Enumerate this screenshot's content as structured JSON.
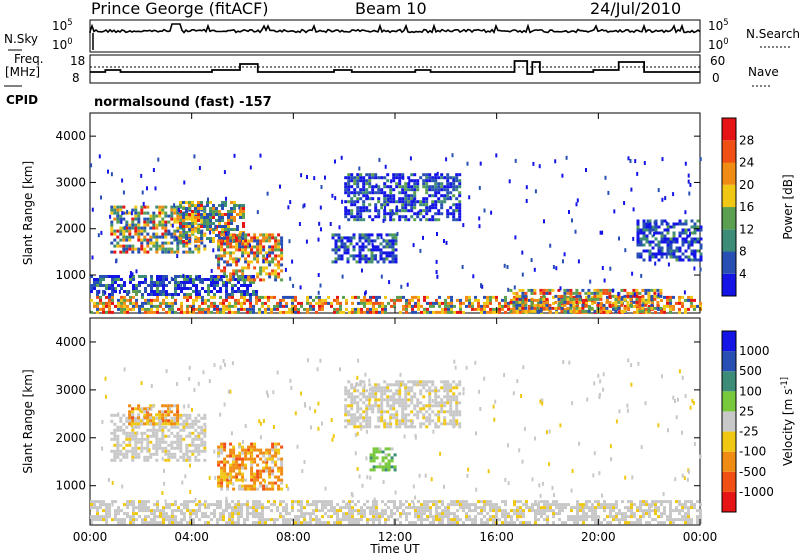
{
  "header": {
    "station": "Prince George (fitACF)",
    "beam": "Beam 10",
    "date": "24/Jul/2010"
  },
  "panels": {
    "nsky_label": "N.Sky",
    "nsky_ticks": [
      "10^5",
      "10^0"
    ],
    "nsearch_label": "N.Search",
    "nsearch_ticks": [
      "10^5",
      "10^0"
    ],
    "freq_label": "Freq.",
    "freq_unit": "[MHz]",
    "freq_ticks": [
      "18",
      "8"
    ],
    "nave_label": "Nave",
    "nave_ticks": [
      "60",
      "0"
    ],
    "cpid_label": "CPID",
    "cpid_value": "normalsound (fast) -157"
  },
  "colors": {
    "power_scale": [
      "#1414e6",
      "#2850b4",
      "#3c8c78",
      "#5aa050",
      "#f0c814",
      "#f08c14",
      "#f05014",
      "#e61414"
    ],
    "velocity_scale": [
      "#e61414",
      "#f05014",
      "#f08c14",
      "#f0c814",
      "#c8c8c8",
      "#78c83c",
      "#3c8c78",
      "#2850b4",
      "#1414e6"
    ]
  },
  "chart_data": [
    {
      "type": "heatmap",
      "title": "Power",
      "ylabel": "Slant Range [km]",
      "xlabel": "",
      "ylim": [
        180,
        4500
      ],
      "yticks": [
        "1000",
        "2000",
        "3000",
        "4000"
      ],
      "xlim_hours": [
        0,
        24
      ],
      "colorbar": {
        "label": "Power [dB]",
        "ticks": [
          "4",
          "8",
          "12",
          "16",
          "20",
          "24",
          "28"
        ],
        "range": [
          0,
          32
        ]
      },
      "echo_regions": [
        {
          "t": [
            0.0,
            24.0
          ],
          "r": [
            200,
            550
          ],
          "level": "high"
        },
        {
          "t": [
            0.0,
            6.5
          ],
          "r": [
            550,
            1000
          ],
          "level": "low"
        },
        {
          "t": [
            0.8,
            4.5
          ],
          "r": [
            1500,
            2500
          ],
          "level": "medium"
        },
        {
          "t": [
            3.5,
            6.0
          ],
          "r": [
            1700,
            2600
          ],
          "level": "medium"
        },
        {
          "t": [
            5.0,
            7.5
          ],
          "r": [
            900,
            1900
          ],
          "level": "high"
        },
        {
          "t": [
            9.5,
            12.0
          ],
          "r": [
            1300,
            1900
          ],
          "level": "low"
        },
        {
          "t": [
            10.0,
            14.5
          ],
          "r": [
            2200,
            3200
          ],
          "level": "low"
        },
        {
          "t": [
            16.5,
            22.5
          ],
          "r": [
            200,
            700
          ],
          "level": "high"
        },
        {
          "t": [
            21.5,
            24.0
          ],
          "r": [
            1300,
            2200
          ],
          "level": "low"
        }
      ]
    },
    {
      "type": "heatmap",
      "title": "Velocity",
      "ylabel": "Slant Range [km]",
      "xlabel": "Time UT",
      "ylim": [
        180,
        4500
      ],
      "yticks": [
        "1000",
        "2000",
        "3000",
        "4000"
      ],
      "xticks": [
        "00:00",
        "04:00",
        "08:00",
        "12:00",
        "16:00",
        "20:00",
        "00:00"
      ],
      "xlim_hours": [
        0,
        24
      ],
      "colorbar": {
        "label": "Velocity [m s^-1]",
        "ticks": [
          "1000",
          "500",
          "100",
          "25",
          "-25",
          "-100",
          "-500",
          "-1000"
        ]
      },
      "echo_regions": [
        {
          "t": [
            0.0,
            24.0
          ],
          "r": [
            200,
            700
          ],
          "level": "ground"
        },
        {
          "t": [
            0.8,
            4.5
          ],
          "r": [
            1500,
            2500
          ],
          "level": "ground"
        },
        {
          "t": [
            1.5,
            3.5
          ],
          "r": [
            2300,
            2700
          ],
          "level": "negative"
        },
        {
          "t": [
            5.0,
            7.5
          ],
          "r": [
            900,
            1900
          ],
          "level": "negative"
        },
        {
          "t": [
            10.0,
            14.5
          ],
          "r": [
            2200,
            3200
          ],
          "level": "ground"
        },
        {
          "t": [
            11.0,
            12.0
          ],
          "r": [
            1300,
            1800
          ],
          "level": "positive"
        }
      ]
    }
  ]
}
